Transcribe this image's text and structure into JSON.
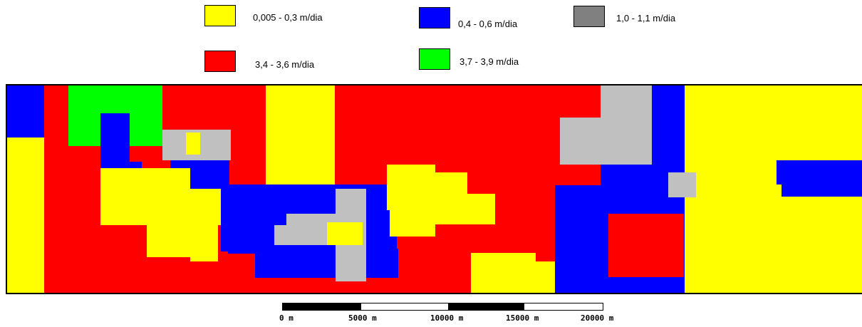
{
  "legend": [
    {
      "label": "0,005 - 0,3 m/dia",
      "color": "#ffff00"
    },
    {
      "label": "0,4 - 0,6 m/dia",
      "color": "#0000ff"
    },
    {
      "label": "1,0 - 1,1 m/dia",
      "color": "#808080"
    },
    {
      "label": "3,4 - 3,6 m/dia",
      "color": "#ff0000"
    },
    {
      "label": "3,7 - 3,9 m/dia",
      "color": "#00ff00"
    }
  ],
  "map": {
    "background_color": "#ff0000",
    "zone_colors": {
      "yellow": "#ffff00",
      "blue": "#0000ff",
      "gray": "#c0c0c0",
      "red": "#ff0000",
      "green": "#00ff00"
    }
  },
  "scale_bar": {
    "ticks": [
      "0 m",
      "5000 m",
      "10000 m",
      "15000 m",
      "20000 m"
    ],
    "segment_colors": [
      "#000000",
      "#ffffff",
      "#000000",
      "#ffffff"
    ]
  }
}
